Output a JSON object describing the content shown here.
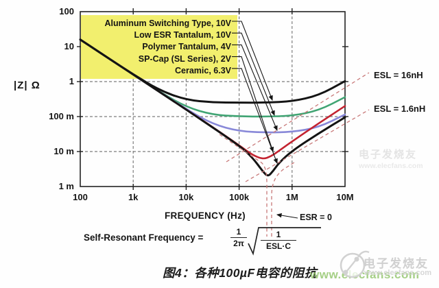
{
  "chart_data": {
    "type": "line",
    "scale": "log-log",
    "xlabel": "FREQUENCY (Hz)",
    "ylabel": "|Z| Ω",
    "x_ticks": [
      "100",
      "1k",
      "10k",
      "100k",
      "1M",
      "10M"
    ],
    "y_ticks": [
      "100",
      "10",
      "1",
      "100 m",
      "10 m",
      "1 m"
    ],
    "xlim_hz": [
      100,
      10000000
    ],
    "ylim_ohm": [
      0.001,
      100
    ],
    "grid": "dashed at decades",
    "series": [
      {
        "name": "Aluminum Switching Type, 10V",
        "color": "#141414",
        "points": [
          [
            100,
            15.9
          ],
          [
            316,
            5.0
          ],
          [
            1000,
            1.61
          ],
          [
            3160,
            0.56
          ],
          [
            10000,
            0.3
          ],
          [
            31600,
            0.254
          ],
          [
            100000,
            0.25
          ],
          [
            316000,
            0.251
          ],
          [
            1000000,
            0.27
          ],
          [
            3160000,
            0.4
          ],
          [
            10000000,
            1.03
          ]
        ]
      },
      {
        "name": "Low ESR Tantalum, 10V",
        "color": "#40a473",
        "points": [
          [
            100,
            15.9
          ],
          [
            1000,
            1.6
          ],
          [
            3160,
            0.51
          ],
          [
            10000,
            0.188
          ],
          [
            31600,
            0.112
          ],
          [
            100000,
            0.101
          ],
          [
            316000,
            0.1
          ],
          [
            1000000,
            0.105
          ],
          [
            3160000,
            0.148
          ],
          [
            10000000,
            0.36
          ]
        ]
      },
      {
        "name": "Polymer Tantalum, 4V",
        "color": "#8888d8",
        "points": [
          [
            100,
            15.9
          ],
          [
            1000,
            1.59
          ],
          [
            10000,
            0.163
          ],
          [
            31600,
            0.061
          ],
          [
            100000,
            0.038
          ],
          [
            316000,
            0.035
          ],
          [
            1000000,
            0.036
          ],
          [
            3160000,
            0.049
          ],
          [
            10000000,
            0.115
          ]
        ]
      },
      {
        "name": "SP-Cap (SL Series), 2V",
        "color": "#c32330",
        "points": [
          [
            100,
            15.9
          ],
          [
            1000,
            1.59
          ],
          [
            10000,
            0.159
          ],
          [
            31600,
            0.05
          ],
          [
            100000,
            0.0151
          ],
          [
            178000,
            0.008
          ],
          [
            281000,
            0.006
          ],
          [
            400000,
            0.0073
          ],
          [
            562000,
            0.0104
          ],
          [
            1000000,
            0.0194
          ],
          [
            3160000,
            0.064
          ],
          [
            10000000,
            0.2
          ]
        ]
      },
      {
        "name": "Ceramic, 6.3V",
        "color": "#141414",
        "points": [
          [
            100,
            15.9
          ],
          [
            1000,
            1.59
          ],
          [
            10000,
            0.159
          ],
          [
            100000,
            0.015
          ],
          [
            178000,
            0.0068
          ],
          [
            281000,
            0.0027
          ],
          [
            350000,
            0.0019
          ],
          [
            440000,
            0.0028
          ],
          [
            562000,
            0.0047
          ],
          [
            1000000,
            0.0105
          ],
          [
            3160000,
            0.033
          ],
          [
            10000000,
            0.095
          ]
        ]
      }
    ],
    "legend_position": "top-left, yellow box",
    "reference_lines": [
      {
        "label": "ESL = 16nH",
        "style": "pink dashed, inductive slope"
      },
      {
        "label": "ESL = 1.6nH",
        "style": "pink dashed, inductive slope"
      },
      {
        "label": "ESR = 0",
        "style": "pink dashed, ideal resonance V"
      }
    ]
  },
  "annotations": {
    "esl_16": "ESL = 16nH",
    "esl_1_6": "ESL = 1.6nH",
    "esr_0": "ESR = 0"
  },
  "formula": {
    "lhs": "Self-Resonant Frequency =",
    "frac1_num": "1",
    "frac1_den": "2π",
    "frac2_num": "1",
    "frac2_den": "ESL·C",
    "as_text": "Self-Resonant Frequency = (1/2π)·√(1/(ESL·C))"
  },
  "caption": {
    "text": "图4：各种100µF电容的阻抗"
  },
  "watermark": {
    "url_text": "www.elecfans.com",
    "brand": "电子发烧友",
    "brand_url": "www.elecfans.com"
  },
  "watermark_corner": {
    "brand": "电子发烧友",
    "url": "www.elecfans.com"
  },
  "colors": {
    "legend_bg": "#f2ef6e",
    "curve_black": "#141414",
    "tantalum_green": "#40a473",
    "polymer_purple": "#8888d8",
    "spcap_red": "#c32330",
    "reference_pink": "#c87878",
    "watermark_green": "#8fc468"
  }
}
